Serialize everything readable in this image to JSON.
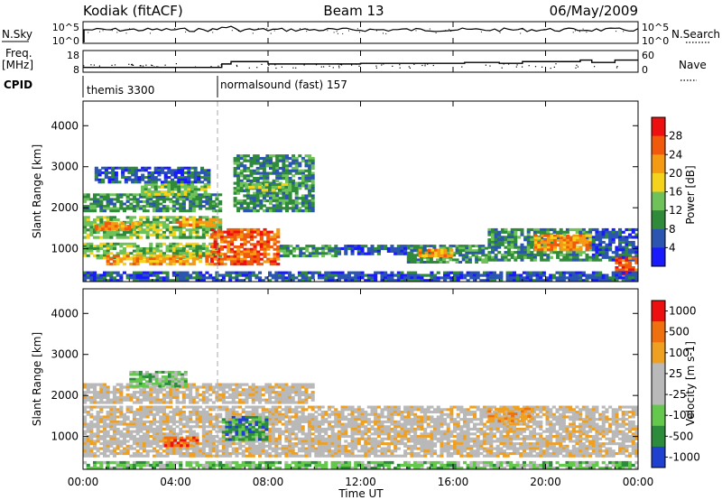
{
  "header": {
    "station": "Kodiak (fitACF)",
    "beam": "Beam 13",
    "date": "06/May/2009"
  },
  "side_labels": {
    "nsky": "N.Sky",
    "freq": "Freq.",
    "freq_unit": "[MHz]",
    "cpid": "CPID",
    "nsearch": "N.Search",
    "nave": "Nave"
  },
  "cpid_segments": [
    {
      "label": "themis 3300",
      "start_hour": 0.0
    },
    {
      "label": "normalsound (fast) 157",
      "start_hour": 6.0
    }
  ],
  "chart_data": [
    {
      "type": "line",
      "name": "noise-panel",
      "left_axis": {
        "label": "N.Sky",
        "ticks": [
          "10^5",
          "10^0"
        ]
      },
      "right_axis": {
        "label": "N.Search",
        "ticks": [
          "10^5",
          "10^0"
        ]
      },
      "xlim_hours": [
        0,
        24
      ]
    },
    {
      "type": "line",
      "name": "freq-nave-panel",
      "left_axis": {
        "label": "Freq. [MHz]",
        "ticks": [
          "18",
          "8"
        ]
      },
      "right_axis": {
        "label": "Nave",
        "ticks": [
          "60",
          "0"
        ]
      },
      "freq_steps": [
        {
          "hour": 0.0,
          "mhz": 10.2
        },
        {
          "hour": 6.0,
          "mhz": 11.8
        },
        {
          "hour": 6.4,
          "mhz": 12.9
        },
        {
          "hour": 8.0,
          "mhz": 11.8
        },
        {
          "hour": 12.0,
          "mhz": 12.1
        },
        {
          "hour": 16.5,
          "mhz": 12.5
        },
        {
          "hour": 18.0,
          "mhz": 12.1
        },
        {
          "hour": 19.0,
          "mhz": 12.9
        },
        {
          "hour": 21.5,
          "mhz": 13.6
        },
        {
          "hour": 22.0,
          "mhz": 12.5
        },
        {
          "hour": 23.0,
          "mhz": 13.6
        },
        {
          "hour": 24.0,
          "mhz": 13.6
        }
      ],
      "xlim_hours": [
        0,
        24
      ]
    },
    {
      "type": "heatmap",
      "name": "power-panel",
      "ylabel": "Slant Range [km]",
      "yticks": [
        1000,
        2000,
        3000,
        4000
      ],
      "ylim": [
        200,
        4600
      ],
      "xlim_hours": [
        0,
        24
      ],
      "colorbar": {
        "label": "Power [dB]",
        "ticks": [
          "28",
          "24",
          "20",
          "16",
          "12",
          "8",
          "4"
        ]
      },
      "regions": [
        {
          "h0": 0.0,
          "h1": 6.0,
          "r0": 750,
          "r1": 1150,
          "level": 3
        },
        {
          "h0": 1.0,
          "h1": 6.0,
          "r0": 600,
          "r1": 850,
          "level": 5
        },
        {
          "h0": 0.0,
          "h1": 6.0,
          "r0": 1250,
          "r1": 1800,
          "level": 3
        },
        {
          "h0": 0.5,
          "h1": 2.5,
          "r0": 1450,
          "r1": 1650,
          "level": 5
        },
        {
          "h0": 4.0,
          "h1": 6.0,
          "r0": 1550,
          "r1": 1750,
          "level": 5
        },
        {
          "h0": 0.0,
          "h1": 6.0,
          "r0": 1900,
          "r1": 2350,
          "level": 2
        },
        {
          "h0": 2.5,
          "h1": 5.5,
          "r0": 2300,
          "r1": 2600,
          "level": 3
        },
        {
          "h0": 0.5,
          "h1": 5.5,
          "r0": 2600,
          "r1": 3000,
          "level": 1
        },
        {
          "h0": 5.5,
          "h1": 8.5,
          "r0": 600,
          "r1": 1500,
          "level": 6
        },
        {
          "h0": 8.5,
          "h1": 11.0,
          "r0": 800,
          "r1": 1100,
          "level": 2
        },
        {
          "h0": 6.5,
          "h1": 10.0,
          "r0": 1900,
          "r1": 3300,
          "level": 2
        },
        {
          "h0": 7.0,
          "h1": 9.0,
          "r0": 2400,
          "r1": 2600,
          "level": 3
        },
        {
          "h0": 11.0,
          "h1": 14.0,
          "r0": 850,
          "r1": 1100,
          "level": 1
        },
        {
          "h0": 14.0,
          "h1": 17.5,
          "r0": 650,
          "r1": 1100,
          "level": 2
        },
        {
          "h0": 14.5,
          "h1": 16.0,
          "r0": 800,
          "r1": 1000,
          "level": 5
        },
        {
          "h0": 17.5,
          "h1": 22.0,
          "r0": 700,
          "r1": 1500,
          "level": 2
        },
        {
          "h0": 19.5,
          "h1": 22.0,
          "r0": 950,
          "r1": 1350,
          "level": 5
        },
        {
          "h0": 22.0,
          "h1": 24.0,
          "r0": 700,
          "r1": 1500,
          "level": 1
        },
        {
          "h0": 23.0,
          "h1": 24.0,
          "r0": 350,
          "r1": 800,
          "level": 6
        },
        {
          "h0": 0.0,
          "h1": 24.0,
          "r0": 200,
          "r1": 450,
          "level": 1
        }
      ]
    },
    {
      "type": "heatmap",
      "name": "velocity-panel",
      "ylabel": "Slant Range [km]",
      "yticks": [
        1000,
        2000,
        3000,
        4000
      ],
      "ylim": [
        200,
        4600
      ],
      "xlim_hours": [
        0,
        24
      ],
      "colorbar": {
        "label": "Velocity [m s-1]",
        "ticks": [
          "1000",
          "500",
          "100",
          "25",
          "-25",
          "-100",
          "-500",
          "-1000"
        ]
      },
      "regions": [
        {
          "h0": 0.0,
          "h1": 24.0,
          "r0": 500,
          "r1": 1750,
          "level": 4
        },
        {
          "h0": 0.0,
          "h1": 10.0,
          "r0": 1800,
          "r1": 2300,
          "level": 4
        },
        {
          "h0": 6.0,
          "h1": 8.0,
          "r0": 900,
          "r1": 1500,
          "level": 1
        },
        {
          "h0": 3.5,
          "h1": 5.0,
          "r0": 750,
          "r1": 1000,
          "level": 6
        },
        {
          "h0": 2.0,
          "h1": 4.5,
          "r0": 2200,
          "r1": 2600,
          "level": 2
        },
        {
          "h0": 17.5,
          "h1": 19.5,
          "r0": 1350,
          "r1": 1700,
          "level": 5
        },
        {
          "h0": 0.0,
          "h1": 24.0,
          "r0": 200,
          "r1": 400,
          "level": 2
        }
      ]
    }
  ],
  "x_axis": {
    "label": "Time UT",
    "ticks": [
      "00:00",
      "04:00",
      "08:00",
      "12:00",
      "16:00",
      "20:00",
      "00:00"
    ]
  },
  "colors": {
    "power": [
      "#1a1aff",
      "#2b55b0",
      "#2f8a3a",
      "#6fc25a",
      "#f5d21c",
      "#f59a13",
      "#f05a0a",
      "#ee1010"
    ],
    "velocity": [
      "#2040d0",
      "#2c8c3c",
      "#63c84b",
      "#b9b9b9",
      "#b9b9b9",
      "#f0a020",
      "#f07010",
      "#ee1010"
    ]
  }
}
